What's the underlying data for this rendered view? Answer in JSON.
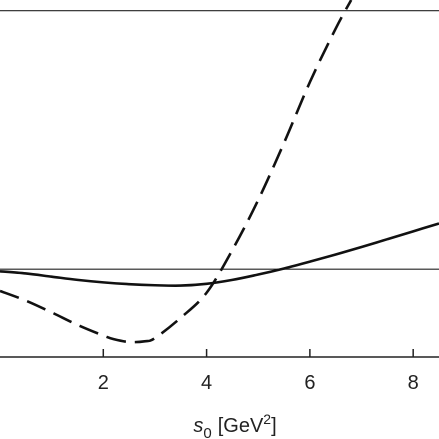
{
  "chart_data": {
    "type": "line",
    "xlabel_var": "s",
    "xlabel_sub": "0",
    "xlabel_unit_pre": "[GeV",
    "xlabel_unit_sup": "2",
    "xlabel_unit_post": "]",
    "xlim": [
      0.0,
      8.5
    ],
    "ylim": [
      0.0,
      1.0
    ],
    "x_ticks": [
      {
        "value": 2,
        "label": "2"
      },
      {
        "value": 4,
        "label": "4"
      },
      {
        "value": 6,
        "label": "6"
      },
      {
        "value": 8,
        "label": "8"
      }
    ],
    "reference_lines": [
      {
        "y": 0.97
      },
      {
        "y": 0.246
      }
    ],
    "series": [
      {
        "style": "solid",
        "x": [
          0.0,
          0.5,
          1.0,
          1.5,
          2.0,
          2.5,
          3.0,
          3.5,
          4.0,
          4.5,
          5.0,
          5.5,
          6.0,
          6.5,
          7.0,
          7.5,
          8.0,
          8.5
        ],
        "y": [
          0.24,
          0.234,
          0.225,
          0.216,
          0.209,
          0.204,
          0.201,
          0.2,
          0.205,
          0.216,
          0.231,
          0.248,
          0.267,
          0.287,
          0.308,
          0.33,
          0.352,
          0.374
        ]
      },
      {
        "style": "dashed",
        "x": [
          0.0,
          0.5,
          1.0,
          1.5,
          2.0,
          2.2,
          2.5,
          2.8,
          3.0,
          3.5,
          4.0,
          4.5,
          5.0,
          5.5,
          6.0,
          6.5,
          6.8
        ],
        "y": [
          0.185,
          0.158,
          0.125,
          0.09,
          0.06,
          0.05,
          0.042,
          0.044,
          0.053,
          0.11,
          0.18,
          0.3,
          0.44,
          0.6,
          0.77,
          0.92,
          1.0
        ]
      }
    ]
  }
}
